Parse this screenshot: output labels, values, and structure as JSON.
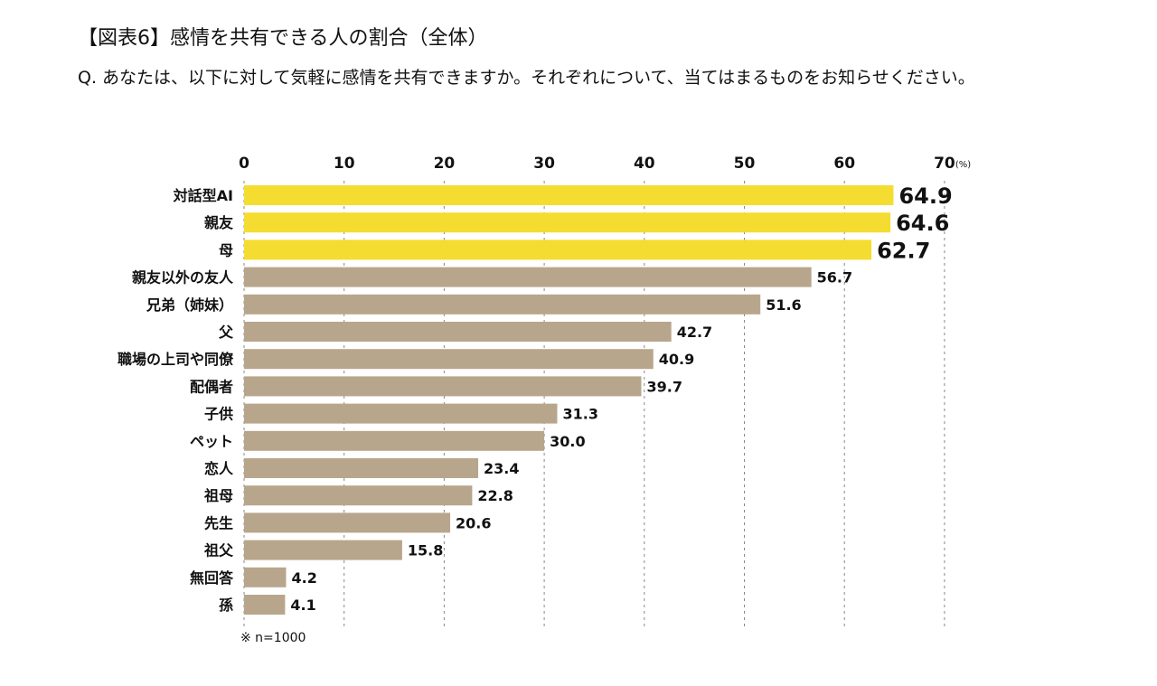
{
  "header": {
    "title": "【図表6】感情を共有できる人の割合（全体）",
    "question": "Q. あなたは、以下に対して気軽に感情を共有できますか。それぞれについて、当てはまるものをお知らせください。"
  },
  "footnote": "※ n=1000",
  "colors": {
    "highlight_bar": "#f5dc30",
    "normal_bar": "#b8a68c",
    "highlight_value": "#5fa86a",
    "normal_value": "#111111",
    "grid": "#888888"
  },
  "chart_data": {
    "type": "bar",
    "orientation": "horizontal",
    "unit": "(%)",
    "xlim": [
      0,
      70
    ],
    "ticks": [
      "0",
      "10",
      "20",
      "30",
      "40",
      "50",
      "60",
      "70"
    ],
    "tick_values": [
      0,
      10,
      20,
      30,
      40,
      50,
      60,
      70
    ],
    "categories": [
      "対話型AI",
      "親友",
      "母",
      "親友以外の友人",
      "兄弟（姉妹）",
      "父",
      "職場の上司や同僚",
      "配偶者",
      "子供",
      "ペット",
      "恋人",
      "祖母",
      "先生",
      "祖父",
      "無回答",
      "孫"
    ],
    "values": [
      64.9,
      64.6,
      62.7,
      56.7,
      51.6,
      42.7,
      40.9,
      39.7,
      31.3,
      30.0,
      23.4,
      22.8,
      20.6,
      15.8,
      4.2,
      4.1
    ],
    "value_labels": [
      "64.9",
      "64.6",
      "62.7",
      "56.7",
      "51.6",
      "42.7",
      "40.9",
      "39.7",
      "31.3",
      "30.0",
      "23.4",
      "22.8",
      "20.6",
      "15.8",
      "4.2",
      "4.1"
    ],
    "highlighted": [
      true,
      true,
      true,
      false,
      false,
      false,
      false,
      false,
      false,
      false,
      false,
      false,
      false,
      false,
      false,
      false
    ],
    "grid": "vertical dashed"
  }
}
